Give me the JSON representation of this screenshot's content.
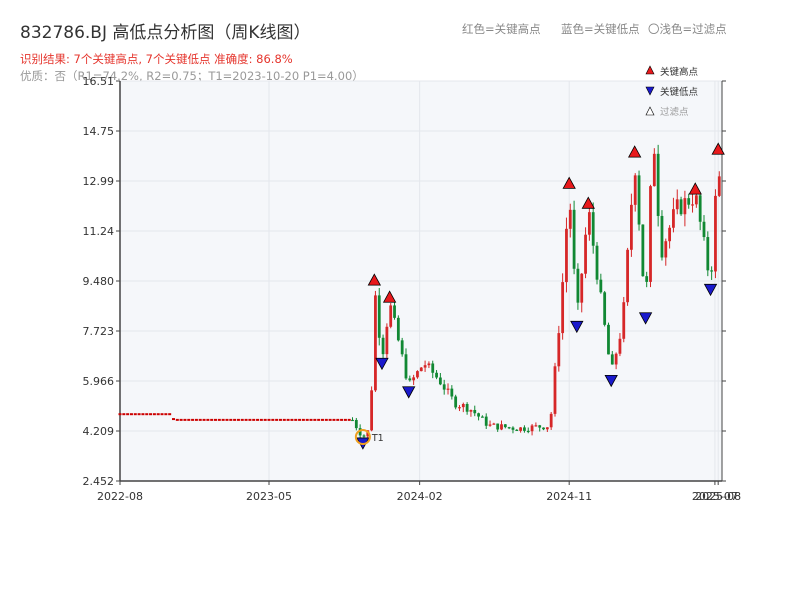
{
  "title": "832786.BJ 高低点分析图（周K线图）",
  "result_text": "识别结果: 7个关键高点, 7个关键低点   准确度: 86.8%",
  "quality_text": "优质：否（R1=74.2%, R2=0.75；T1=2023-10-20 P1=4.00）",
  "legend_top": {
    "red": "红色=关键高点",
    "blue": "蓝色=关键低点",
    "light": "〇浅色=过滤点"
  },
  "marker_legend": {
    "high": "关键高点",
    "low": "关键低点",
    "filtered": "过滤点"
  },
  "t1_label": "T1",
  "colors": {
    "up": "#d62728",
    "down": "#118833",
    "flat": "#cc0000",
    "high_marker": "#e8191c",
    "low_marker": "#1a1acc",
    "t1_ring": "#f0a020",
    "plot_bg": "#f5f7fa",
    "grid": "#e4e7ec"
  },
  "chart_data": {
    "type": "candlestick",
    "x_ticks": [
      "2022-08",
      "2023-05",
      "2024-02",
      "2024-11",
      "2025-07",
      "2025-08"
    ],
    "y_ticks": [
      "16.51",
      "14.75",
      "12.99",
      "11.24",
      "9.480",
      "7.723",
      "5.966",
      "4.209",
      "2.452"
    ],
    "ylim": [
      2.452,
      16.51
    ],
    "xlim": [
      "2022-08",
      "2025-08"
    ],
    "key_highs": [
      {
        "date": "2023-11-10",
        "price": 9.3
      },
      {
        "date": "2023-12-08",
        "price": 8.7
      },
      {
        "date": "2024-11-01",
        "price": 12.7
      },
      {
        "date": "2024-12-06",
        "price": 12.0
      },
      {
        "date": "2025-03-01",
        "price": 13.8
      },
      {
        "date": "2025-06-20",
        "price": 12.5
      },
      {
        "date": "2025-08-01",
        "price": 13.9
      }
    ],
    "key_lows": [
      {
        "date": "2023-10-20",
        "price": 4.0
      },
      {
        "date": "2023-11-24",
        "price": 6.8
      },
      {
        "date": "2024-01-12",
        "price": 5.8
      },
      {
        "date": "2024-11-15",
        "price": 8.1
      },
      {
        "date": "2025-01-17",
        "price": 6.2
      },
      {
        "date": "2025-03-21",
        "price": 8.4
      },
      {
        "date": "2025-07-18",
        "price": 9.4
      }
    ],
    "price_path": [
      [
        "2022-08-01",
        4.8
      ],
      [
        "2022-11-01",
        4.8
      ],
      [
        "2022-11-08",
        4.6
      ],
      [
        "2023-10-01",
        4.6
      ],
      [
        "2023-10-20",
        4.0
      ],
      [
        "2023-11-03",
        4.3
      ],
      [
        "2023-11-10",
        9.3
      ],
      [
        "2023-11-24",
        6.8
      ],
      [
        "2023-12-08",
        8.7
      ],
      [
        "2024-01-12",
        5.8
      ],
      [
        "2024-02-09",
        6.6
      ],
      [
        "2024-03-08",
        6.0
      ],
      [
        "2024-04-05",
        5.2
      ],
      [
        "2024-05-03",
        5.0
      ],
      [
        "2024-06-07",
        4.4
      ],
      [
        "2024-08-02",
        4.3
      ],
      [
        "2024-09-27",
        4.4
      ],
      [
        "2024-10-18",
        8.9
      ],
      [
        "2024-11-01",
        12.7
      ],
      [
        "2024-11-15",
        8.1
      ],
      [
        "2024-12-06",
        12.0
      ],
      [
        "2025-01-17",
        6.2
      ],
      [
        "2025-02-07",
        8.0
      ],
      [
        "2025-03-01",
        13.8
      ],
      [
        "2025-03-21",
        8.4
      ],
      [
        "2025-04-04",
        14.8
      ],
      [
        "2025-04-18",
        10.5
      ],
      [
        "2025-05-16",
        12.0
      ],
      [
        "2025-06-20",
        12.5
      ],
      [
        "2025-07-18",
        9.4
      ],
      [
        "2025-08-01",
        13.9
      ],
      [
        "2025-08-08",
        11.0
      ]
    ]
  }
}
